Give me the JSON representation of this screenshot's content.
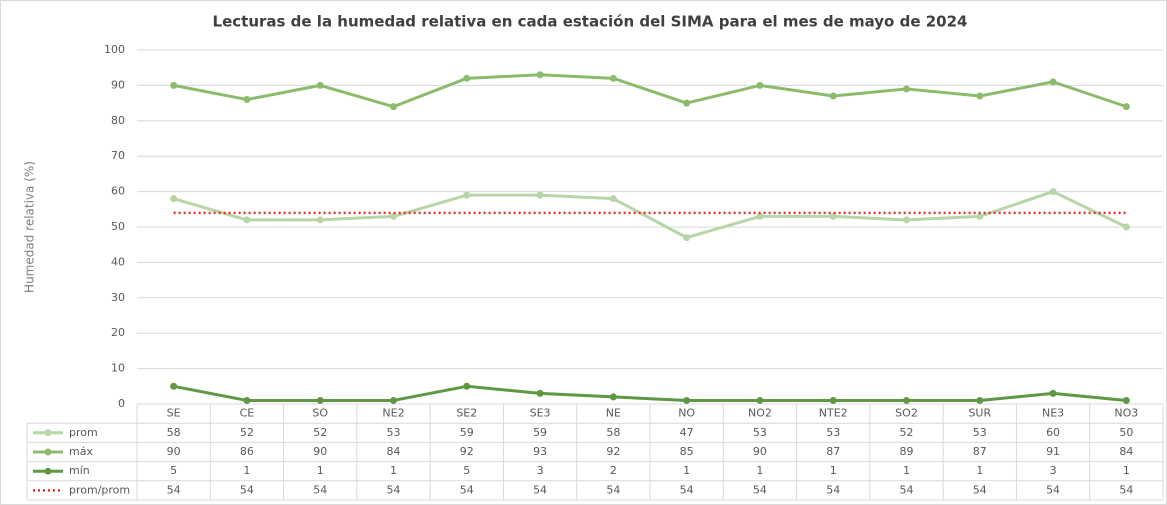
{
  "chart_data": {
    "type": "line",
    "title": "Lecturas de la humedad relativa en cada estación del SIMA para el mes de mayo de 2024",
    "y_label": "Humedad relativa (%)",
    "categories": [
      "SE",
      "CE",
      "SO",
      "NE2",
      "SE2",
      "SE3",
      "NE",
      "NO",
      "NO2",
      "NTE2",
      "SO2",
      "SUR",
      "NE3",
      "NO3"
    ],
    "series": [
      {
        "name": "prom",
        "color": "#b7d5a6",
        "style": "solid",
        "markers": true,
        "values": [
          58,
          52,
          52,
          53,
          59,
          59,
          58,
          47,
          53,
          53,
          52,
          53,
          60,
          50
        ]
      },
      {
        "name": "máx",
        "color": "#8dbb6c",
        "style": "solid",
        "markers": true,
        "values": [
          90,
          86,
          90,
          84,
          92,
          93,
          92,
          85,
          90,
          87,
          89,
          87,
          91,
          84
        ]
      },
      {
        "name": "mín",
        "color": "#5f9744",
        "style": "solid",
        "markers": true,
        "values": [
          5,
          1,
          1,
          1,
          5,
          3,
          2,
          1,
          1,
          1,
          1,
          1,
          3,
          1
        ]
      },
      {
        "name": "prom/prom",
        "color": "#e0312f",
        "style": "dotted",
        "markers": false,
        "values": [
          54,
          54,
          54,
          54,
          54,
          54,
          54,
          54,
          54,
          54,
          54,
          54,
          54,
          54
        ]
      }
    ],
    "ylim": [
      0,
      100
    ],
    "yticks": [
      0,
      10,
      20,
      30,
      40,
      50,
      60,
      70,
      80,
      90,
      100
    ],
    "grid": true,
    "data_table": true
  }
}
